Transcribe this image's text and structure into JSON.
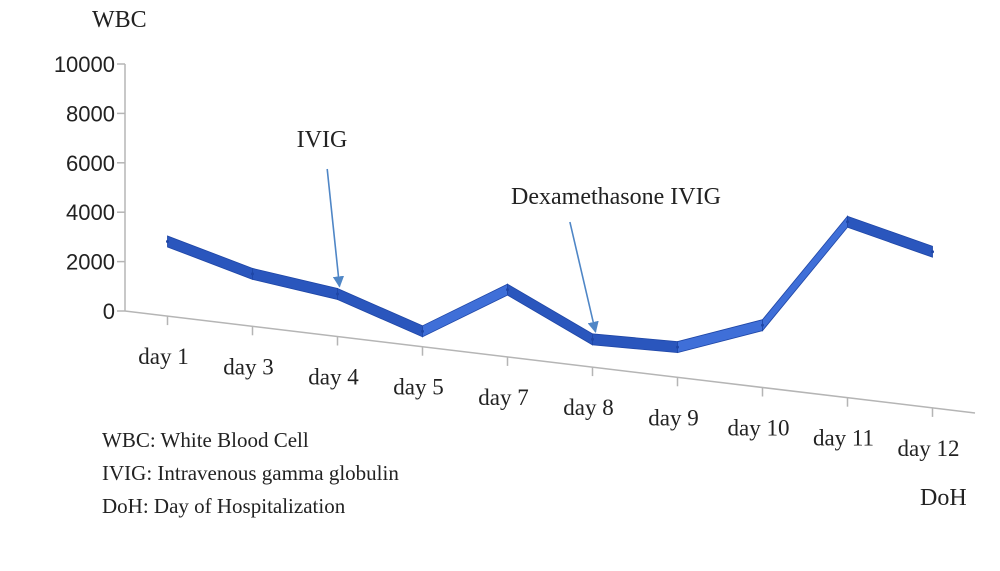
{
  "chart_data": {
    "type": "line",
    "title": "",
    "ylabel": "WBC",
    "xlabel": "DoH",
    "categories": [
      "day 1",
      "day 3",
      "day 4",
      "day 5",
      "day 7",
      "day 8",
      "day 9",
      "day 10",
      "day 11",
      "day 12"
    ],
    "series": [
      {
        "values": [
          2800,
          1900,
          1500,
          400,
          2500,
          900,
          1000,
          2300,
          6900,
          6100
        ]
      }
    ],
    "yticks": [
      "0",
      "2000",
      "4000",
      "6000",
      "8000",
      "10000"
    ],
    "ylim": [
      0,
      10000
    ],
    "grid": false,
    "line_color": "#2f5dc8",
    "annotations": [
      {
        "text": "IVIG",
        "at": "day 4"
      },
      {
        "text": "Dexamethasone IVIG",
        "at": "day 8"
      }
    ]
  },
  "legend_notes": [
    "WBC: White Blood Cell",
    "IVIG: Intravenous gamma globulin",
    "DoH: Day of Hospitalization"
  ]
}
